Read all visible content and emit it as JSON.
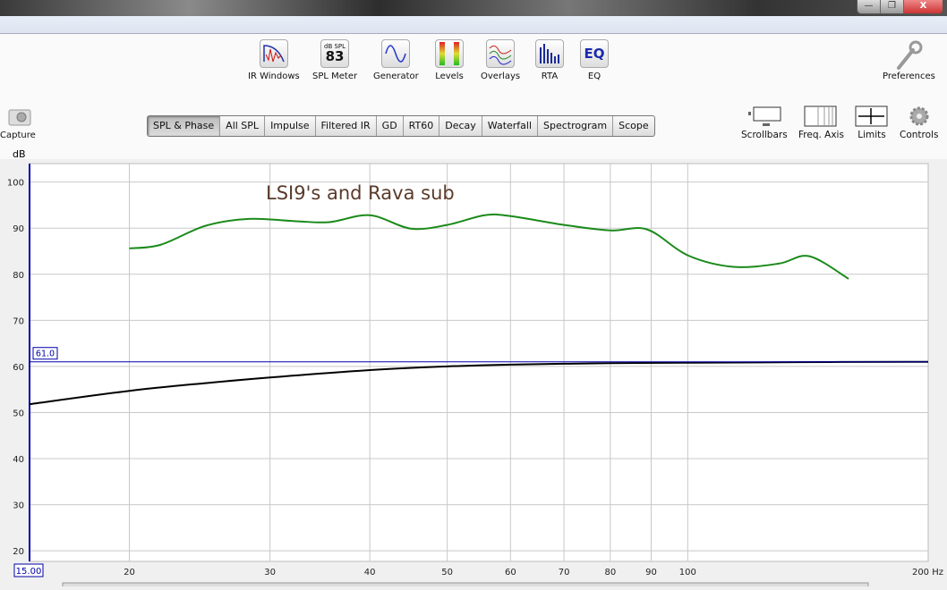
{
  "window": {
    "controls": [
      "—",
      "❐",
      "X"
    ]
  },
  "toolbar": {
    "items": [
      {
        "label": "IR Windows",
        "icon": "ir-windows-icon"
      },
      {
        "label": "SPL Meter",
        "icon": "spl-meter-icon",
        "icon_text_top": "dB SPL",
        "icon_text": "83"
      },
      {
        "label": "Generator",
        "icon": "generator-icon"
      },
      {
        "label": "Levels",
        "icon": "levels-icon"
      },
      {
        "label": "Overlays",
        "icon": "overlays-icon"
      },
      {
        "label": "RTA",
        "icon": "rta-icon"
      },
      {
        "label": "EQ",
        "icon": "eq-icon",
        "icon_text": "EQ"
      }
    ],
    "preferences": "Preferences",
    "capture": "Capture"
  },
  "tabs": [
    {
      "label": "SPL & Phase",
      "active": true
    },
    {
      "label": "All SPL"
    },
    {
      "label": "Impulse"
    },
    {
      "label": "Filtered IR"
    },
    {
      "label": "GD"
    },
    {
      "label": "RT60"
    },
    {
      "label": "Decay"
    },
    {
      "label": "Waterfall"
    },
    {
      "label": "Spectrogram"
    },
    {
      "label": "Scope"
    }
  ],
  "graph_tools": [
    "Scrollbars",
    "Freq. Axis",
    "Limits",
    "Controls"
  ],
  "chart_data": {
    "type": "line",
    "title": "LSI9's and Rava sub",
    "ylabel": "dB",
    "xunit": "Hz",
    "xscale": "log",
    "xlim": [
      15,
      200
    ],
    "ylim": [
      17.7,
      104
    ],
    "grid": true,
    "x_ticks": [
      "20",
      "30",
      "40",
      "50",
      "60",
      "70",
      "80",
      "90",
      "100",
      "200 Hz"
    ],
    "x_tick_values": [
      20,
      30,
      40,
      50,
      60,
      70,
      80,
      90,
      100,
      200
    ],
    "y_ticks": [
      20,
      30,
      40,
      50,
      60,
      70,
      80,
      90,
      100
    ],
    "x_start_readout": "15.00",
    "cursor_readout": "61.0",
    "cursor_value": 61.0,
    "colors": {
      "spl": "#1a8a1a",
      "target": "#000000",
      "cursor": "#0000aa",
      "title": "#5a3a2a"
    },
    "series": [
      {
        "x": [
          20,
          21.9,
          24.9,
          28.2,
          32.3,
          35.6,
          40,
          45,
          50,
          55.7,
          60,
          70,
          80,
          89,
          100,
          114,
          130,
          142,
          159
        ],
        "y": [
          85.6,
          86.4,
          90.5,
          92.0,
          91.5,
          91.3,
          92.8,
          89.9,
          90.7,
          92.8,
          92.6,
          90.7,
          89.5,
          89.7,
          84.1,
          81.6,
          82.3,
          83.9,
          79.0
        ],
        "color": "#1a8a1a"
      },
      {
        "x": [
          15,
          20,
          25,
          30,
          40,
          50,
          60,
          80,
          100,
          150,
          200
        ],
        "y": [
          51.8,
          54.7,
          56.4,
          57.6,
          59.2,
          60.0,
          60.4,
          60.7,
          60.8,
          60.95,
          61.0
        ],
        "color": "#000000"
      }
    ]
  }
}
